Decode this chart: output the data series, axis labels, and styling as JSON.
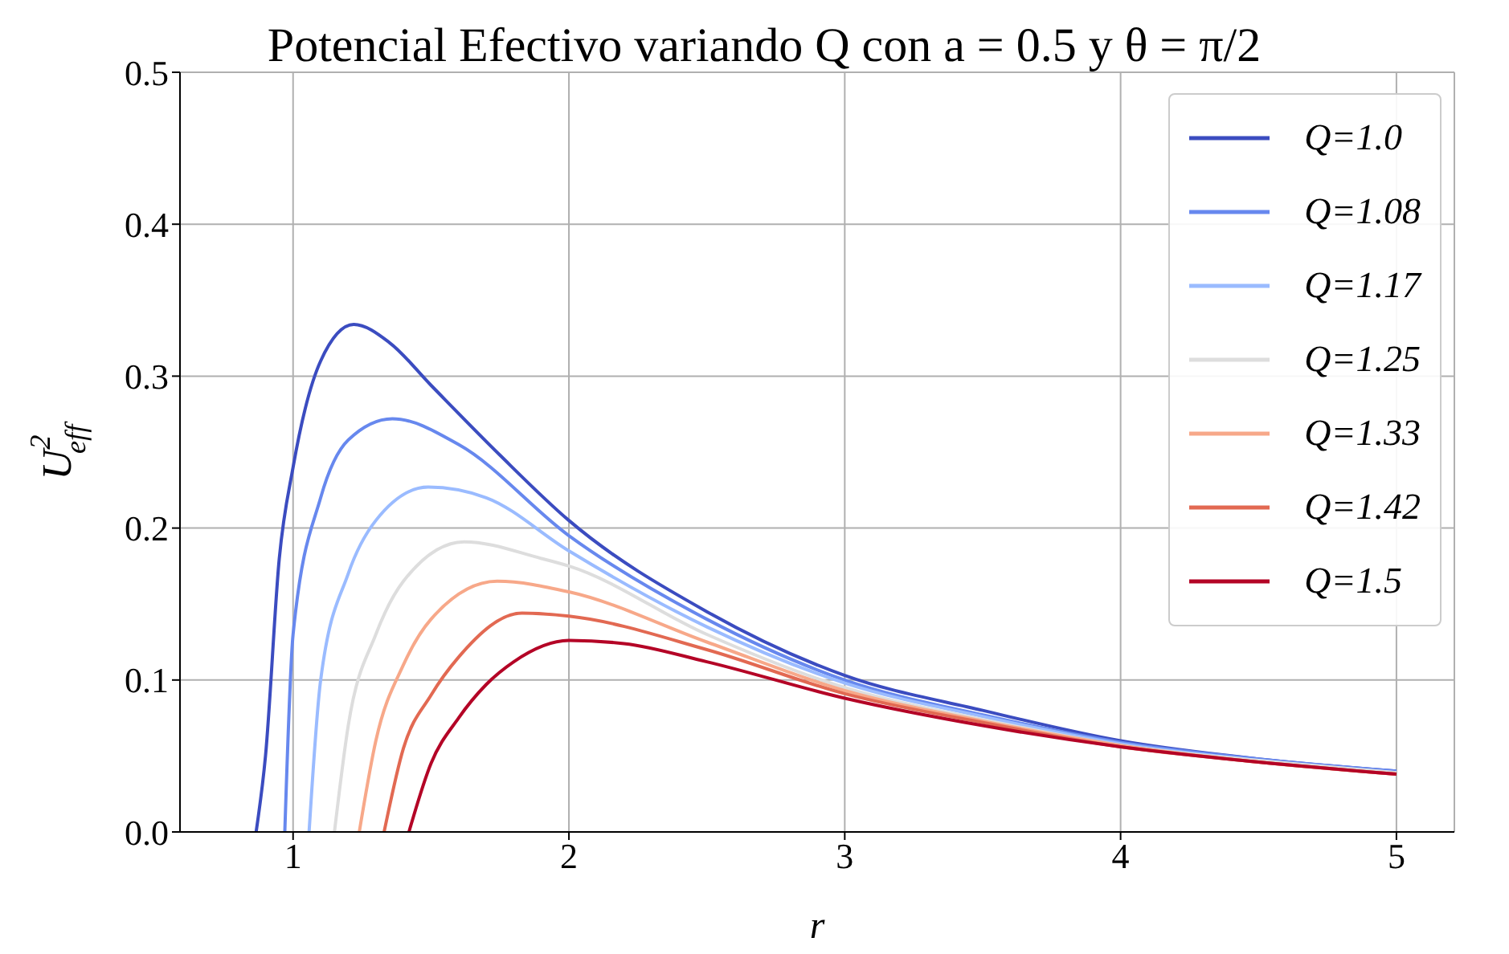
{
  "chart_data": {
    "type": "line",
    "title": "Potencial Efectivo variando Q con a = 0.5 y θ = π/2",
    "xlabel": "r",
    "ylabel": "U$^{2}$$_{eff}$",
    "xlim": [
      0.59,
      5.21
    ],
    "xticks": [
      1,
      2,
      3,
      4,
      5
    ],
    "ylim": [
      0,
      0.5
    ],
    "yticks": [
      {
        "value": 0,
        "label": "0.0"
      },
      0.1,
      0.2,
      0.3,
      0.4,
      0.5
    ],
    "grid": true,
    "legend": "top right",
    "line_style": "solid",
    "series": [
      {
        "name": "Q=1.0",
        "color": "#3b4cc0",
        "x": [
          0.866,
          0.9,
          0.95,
          1.0,
          1.1,
          1.22,
          1.35,
          1.5,
          1.75,
          2.0,
          2.5,
          3.0,
          3.5,
          4.0,
          4.5,
          5.0
        ],
        "values": [
          0,
          0.05,
          0.18,
          0.24,
          0.31,
          0.334,
          0.322,
          0.294,
          0.248,
          0.205,
          0.145,
          0.103,
          0.08,
          0.06,
          0.048,
          0.04
        ]
      },
      {
        "name": "Q=1.08",
        "color": "#6788ee",
        "x": [
          0.97,
          1.0,
          1.1,
          1.2,
          1.36,
          1.6,
          2.0,
          2.5,
          3.0,
          3.5,
          4.0,
          4.5,
          5.0
        ],
        "values": [
          0,
          0.13,
          0.22,
          0.258,
          0.272,
          0.255,
          0.195,
          0.14,
          0.1,
          0.077,
          0.059,
          0.048,
          0.04
        ]
      },
      {
        "name": "Q=1.17",
        "color": "#9abbff",
        "x": [
          1.058,
          1.1,
          1.2,
          1.3,
          1.49,
          1.7,
          2.0,
          2.5,
          3.0,
          3.5,
          4.0,
          4.5,
          5.0
        ],
        "values": [
          0,
          0.1,
          0.17,
          0.205,
          0.227,
          0.22,
          0.185,
          0.135,
          0.098,
          0.076,
          0.058,
          0.047,
          0.039
        ]
      },
      {
        "name": "Q=1.25",
        "color": "#dddddd",
        "x": [
          1.15,
          1.2,
          1.3,
          1.4,
          1.62,
          1.9,
          2.0,
          2.5,
          3.0,
          3.5,
          4.0,
          4.5,
          5.0
        ],
        "values": [
          0,
          0.07,
          0.13,
          0.165,
          0.191,
          0.18,
          0.175,
          0.13,
          0.095,
          0.074,
          0.057,
          0.047,
          0.039
        ]
      },
      {
        "name": "Q=1.33",
        "color": "#f7a889",
        "x": [
          1.24,
          1.3,
          1.4,
          1.5,
          1.74,
          2.0,
          2.5,
          3.0,
          3.5,
          4.0,
          4.5,
          5.0
        ],
        "values": [
          0,
          0.06,
          0.11,
          0.14,
          0.165,
          0.158,
          0.125,
          0.093,
          0.073,
          0.057,
          0.046,
          0.038
        ]
      },
      {
        "name": "Q=1.42",
        "color": "#e26952",
        "x": [
          1.33,
          1.4,
          1.5,
          1.6,
          1.83,
          2.0,
          2.5,
          3.0,
          3.5,
          4.0,
          4.5,
          5.0
        ],
        "values": [
          0,
          0.055,
          0.09,
          0.115,
          0.144,
          0.142,
          0.12,
          0.091,
          0.072,
          0.056,
          0.046,
          0.038
        ]
      },
      {
        "name": "Q=1.5",
        "color": "#b40426",
        "x": [
          1.42,
          1.5,
          1.6,
          1.7,
          1.8,
          2.0,
          2.2,
          2.5,
          3.0,
          3.5,
          4.0,
          4.5,
          5.0
        ],
        "values": [
          0,
          0.045,
          0.075,
          0.097,
          0.112,
          0.126,
          0.124,
          0.112,
          0.088,
          0.07,
          0.056,
          0.046,
          0.038
        ]
      }
    ]
  }
}
